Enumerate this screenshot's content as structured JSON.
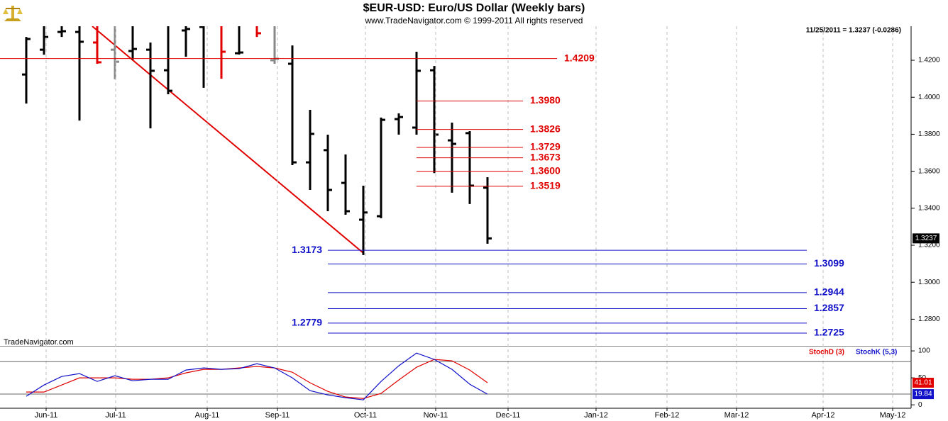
{
  "chart_data": [
    {
      "type": "ohlc",
      "title": "$EUR-USD:  Euro/US Dollar  (Weekly bars)",
      "subtitle": "www.TradeNavigator.com © 1999-2011 All rights reserved",
      "note": "11/25/2011 = 1.3237 (-0.0286)",
      "watermark": "TradeNavigator.com",
      "x": [
        0,
        1,
        2,
        3,
        4,
        5,
        6,
        7,
        8,
        9,
        10,
        11,
        12,
        13,
        14,
        15,
        16,
        17,
        18,
        19,
        20,
        21,
        22,
        23,
        24,
        25,
        26
      ],
      "open": [
        1.4123,
        1.4257,
        1.4353,
        1.4353,
        1.4296,
        1.4257,
        1.425,
        1.4257,
        1.4146,
        1.4361,
        1.438,
        1.44,
        1.4238,
        1.44,
        1.42,
        1.4181,
        1.3648,
        1.3714,
        1.3537,
        1.3338,
        1.3357,
        1.3882,
        1.3836,
        1.4146,
        1.3767,
        1.3806,
        1.3511
      ],
      "high": [
        1.4326,
        1.445,
        1.445,
        1.445,
        1.445,
        1.445,
        1.445,
        1.4296,
        1.445,
        1.445,
        1.445,
        1.445,
        1.445,
        1.445,
        1.445,
        1.428,
        1.3932,
        1.3798,
        1.3691,
        1.3522,
        1.389,
        1.3913,
        1.4246,
        1.4169,
        1.3863,
        1.3817,
        1.3568
      ],
      "low": [
        1.3966,
        1.423,
        1.4326,
        1.3874,
        1.4181,
        1.4097,
        1.4204,
        1.3832,
        1.4016,
        1.4219,
        1.4051,
        1.41,
        1.4231,
        1.4326,
        1.4181,
        1.3633,
        1.3499,
        1.3384,
        1.3365,
        1.3147,
        1.3346,
        1.3798,
        1.3798,
        1.359,
        1.3484,
        1.3423,
        1.3208
      ],
      "close": [
        1.4315,
        1.4326,
        1.4357,
        1.43,
        1.4189,
        1.4192,
        1.4261,
        1.4143,
        1.4035,
        1.4369,
        1.439,
        1.4246,
        1.4242,
        1.4346,
        1.4208,
        1.3648,
        1.3802,
        1.3499,
        1.3384,
        1.3377,
        1.3878,
        1.3893,
        1.4143,
        1.3798,
        1.3748,
        1.3522,
        1.3237
      ],
      "colors": [
        "#000",
        "#000",
        "#000",
        "#000",
        "#e00000",
        "#888",
        "#000",
        "#000",
        "#000",
        "#000",
        "#000",
        "#e00000",
        "#000",
        "#e00000",
        "#888",
        "#000",
        "#000",
        "#000",
        "#000",
        "#000",
        "#000",
        "#000",
        "#000",
        "#000",
        "#000",
        "#000",
        "#000"
      ],
      "levels": [
        {
          "value": 1.4209,
          "label": "1.4209",
          "color": "#e00000",
          "x": [
            -1.48,
            29.92
          ],
          "label_position": "right"
        },
        {
          "value": 1.398,
          "label": "1.3980",
          "color": "#e00000",
          "x": [
            22,
            28
          ],
          "label_position": "right"
        },
        {
          "value": 1.3826,
          "label": "1.3826",
          "color": "#e00000",
          "x": [
            22,
            28
          ],
          "label_position": "right"
        },
        {
          "value": 1.3729,
          "label": "1.3729",
          "color": "#e00000",
          "x": [
            22,
            28
          ],
          "label_position": "right"
        },
        {
          "value": 1.3673,
          "label": "1.3673",
          "color": "#e00000",
          "x": [
            22,
            28
          ],
          "label_position": "right"
        },
        {
          "value": 1.36,
          "label": "1.3600",
          "color": "#e00000",
          "x": [
            22,
            28
          ],
          "label_position": "right"
        },
        {
          "value": 1.3519,
          "label": "1.3519",
          "color": "#e00000",
          "x": [
            22,
            28
          ],
          "label_position": "right"
        },
        {
          "value": 1.3173,
          "label": "1.3173",
          "color": "#1010c8",
          "x": [
            17,
            44
          ],
          "label_position": "left"
        },
        {
          "value": 1.3099,
          "label": "1.3099",
          "color": "#1010c8",
          "x": [
            17,
            44
          ],
          "label_position": "right"
        },
        {
          "value": 1.2944,
          "label": "1.2944",
          "color": "#1010c8",
          "x": [
            17,
            44
          ],
          "label_position": "right"
        },
        {
          "value": 1.2857,
          "label": "1.2857",
          "color": "#1010c8",
          "x": [
            17,
            44
          ],
          "label_position": "right"
        },
        {
          "value": 1.2779,
          "label": "1.2779",
          "color": "#1010c8",
          "x": [
            17,
            44
          ],
          "label_position": "left"
        },
        {
          "value": 1.2725,
          "label": "1.2725",
          "color": "#1010c8",
          "x": [
            17,
            44
          ],
          "label_position": "right"
        }
      ],
      "trendline": {
        "x": [
          3.72,
          19
        ],
        "y": [
          1.4384,
          1.3158
        ],
        "color": "#e00000"
      },
      "xlim": [
        -1.48,
        49.88
      ],
      "xticks": [
        {
          "value": 1.12,
          "label": "Jun-11"
        },
        {
          "value": 5.04,
          "label": "Jul-11"
        },
        {
          "value": 10.2,
          "label": "Aug-11"
        },
        {
          "value": 14.16,
          "label": "Sep-11"
        },
        {
          "value": 19.12,
          "label": "Oct-11"
        },
        {
          "value": 23.08,
          "label": "Nov-11"
        },
        {
          "value": 27.16,
          "label": "Dec-11"
        },
        {
          "value": 32.12,
          "label": "Jan-12"
        },
        {
          "value": 36.12,
          "label": "Feb-12"
        },
        {
          "value": 40.04,
          "label": "Mar-12"
        },
        {
          "value": 44.92,
          "label": "Apr-12"
        },
        {
          "value": 48.84,
          "label": "May-12"
        }
      ],
      "ylim": [
        1.2656,
        1.4384
      ],
      "yticks": [
        {
          "value": 1.28,
          "label": "1.2800"
        },
        {
          "value": 1.3,
          "label": "1.3000"
        },
        {
          "value": 1.32,
          "label": "1.3200"
        },
        {
          "value": 1.34,
          "label": "1.3400"
        },
        {
          "value": 1.36,
          "label": "1.3600"
        },
        {
          "value": 1.38,
          "label": "1.3800"
        },
        {
          "value": 1.4,
          "label": "1.4000"
        },
        {
          "value": 1.42,
          "label": "1.4200"
        }
      ],
      "grid": true
    },
    {
      "type": "line",
      "x": [
        0,
        1,
        2,
        3,
        4,
        5,
        6,
        7,
        8,
        9,
        10,
        11,
        12,
        13,
        14,
        15,
        16,
        17,
        18,
        19,
        20,
        21,
        22,
        23,
        24,
        25,
        26
      ],
      "series": [
        {
          "name": "StochD (3)",
          "color": "#e00000",
          "values": [
            23.7,
            23.7,
            36.8,
            50,
            50,
            50,
            47.4,
            47.4,
            50,
            59.2,
            65.8,
            65.8,
            68.4,
            71.1,
            68.4,
            60.5,
            40.8,
            25,
            14.5,
            11.8,
            21.1,
            46.1,
            69.7,
            84.2,
            81.6,
            64.5,
            41.01
          ]
        },
        {
          "name": "StochK (5,3)",
          "color": "#1010c8",
          "values": [
            15.8,
            36.8,
            52.6,
            57.9,
            43.4,
            53.9,
            44.7,
            47.4,
            47.4,
            64.5,
            68.4,
            65.8,
            67.1,
            76.3,
            68.4,
            50,
            26.3,
            18.4,
            13.2,
            9.2,
            43.4,
            72.4,
            96,
            84.2,
            65.8,
            38.2,
            19.84
          ]
        }
      ],
      "guide_lines": [
        20,
        80
      ],
      "xlim": [
        -1.48,
        49.88
      ],
      "ylim": [
        -5,
        108
      ],
      "yticks": [
        0,
        50,
        100
      ]
    }
  ]
}
